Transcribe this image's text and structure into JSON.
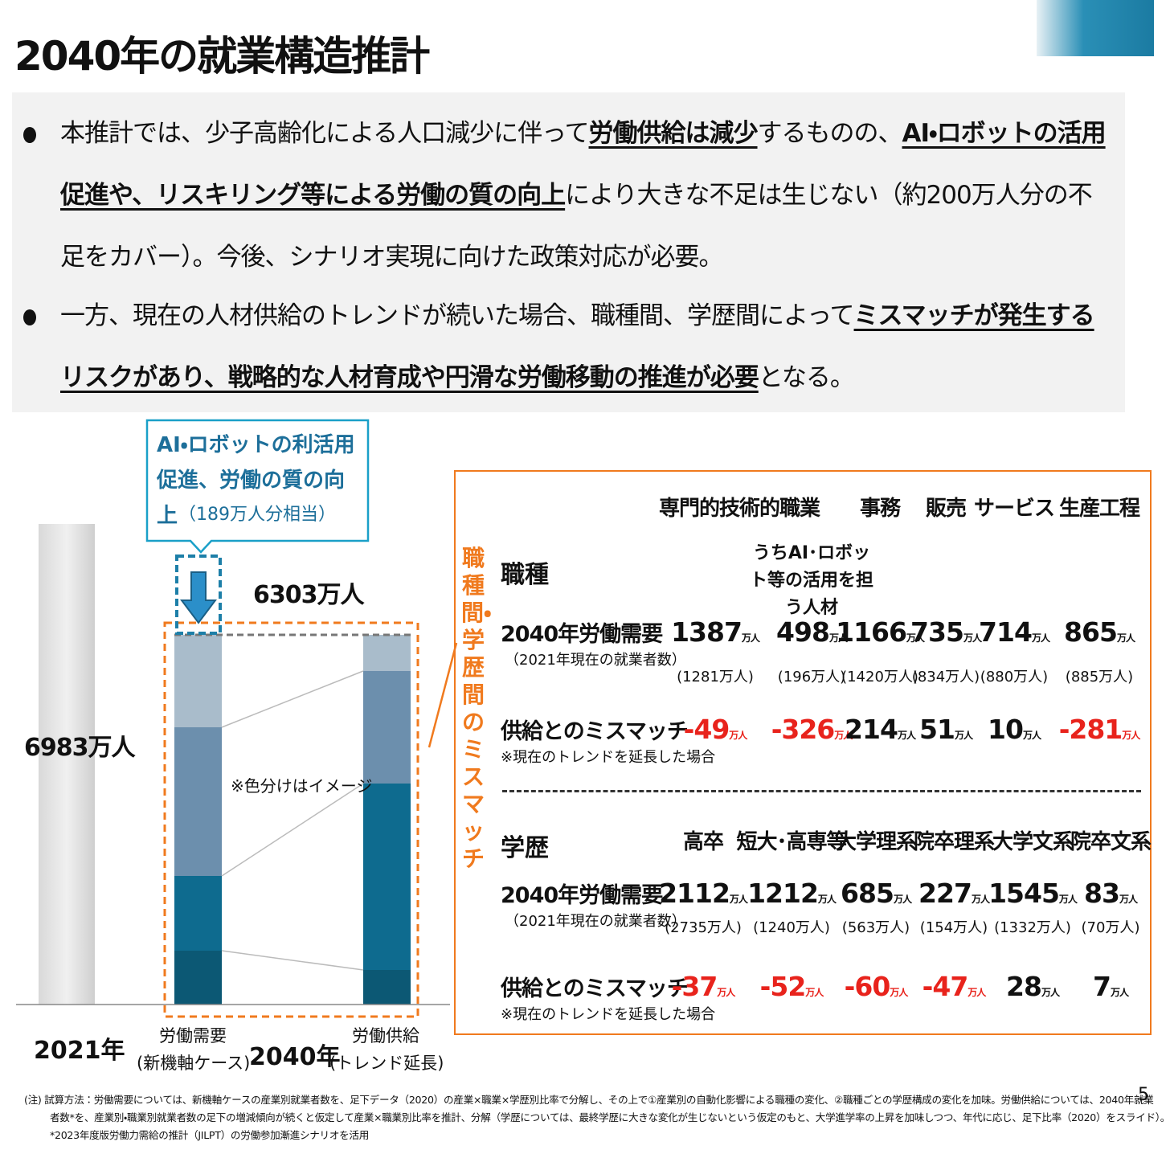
{
  "header": {
    "title": "2040年の就業構造推計"
  },
  "bullets": [
    [
      "本推計では、少子高齢化による人口減少に伴って",
      "労働供給は減少",
      "するものの、",
      "AI・ロボットの活用促進や、リスキリング等による労働の質の向上",
      "により大きな不足は生じない（約200万人分の不足をカバー）。今後、シナリオ実現に向けた政策対応が必要。"
    ],
    [
      "一方、現在の人材供給のトレンドが続いた場合、職種間、学歴間によって",
      "ミスマッチが発生するリスクがあり、戦略的な人材育成や円滑な労働移動の推進が必要",
      "となる。"
    ]
  ],
  "chart": {
    "callout": "AI・ロボットの利活用促進、労働の質の向上",
    "callout_note": "（189万人分相当）",
    "total_2040": "6303万人",
    "total_2021": "6983万人",
    "note": "※色分けはイメージ",
    "year_2021": "2021年",
    "year_2040": "2040年",
    "demand_label": [
      "労働需要",
      "(新機軸ケース)"
    ],
    "supply_label": [
      "労働供給",
      "(トレンド延長)"
    ]
  },
  "mismatch_panel": {
    "title": "職種間・学歴間のミスマッチ",
    "unit": "万人",
    "occupation": {
      "header": "職種",
      "columns": [
        "専門的技術的職業",
        "うちAI･ロボット等の活用を担う人材",
        "事務",
        "販売",
        "サービス",
        "生産工程"
      ],
      "demand_label": "2040年労働需要",
      "demand_note": "（2021年現在の就業者数）",
      "demand": [
        1387,
        498,
        1166,
        735,
        714,
        865
      ],
      "current": [
        "(1281万人)",
        "(196万人)",
        "(1420万人)",
        "(834万人)",
        "(880万人)",
        "(885万人)"
      ],
      "mismatch_label": "供給とのミスマッチ",
      "mismatch_note": "※現在のトレンドを延長した場合",
      "mismatch": [
        -49,
        -326,
        214,
        51,
        10,
        -281
      ]
    },
    "education": {
      "header": "学歴",
      "columns": [
        "高卒",
        "短大･高専等",
        "大学理系",
        "院卒理系",
        "大学文系",
        "院卒文系"
      ],
      "demand_label": "2040年労働需要",
      "demand_note": "（2021年現在の就業者数）",
      "demand": [
        2112,
        1212,
        685,
        227,
        1545,
        83
      ],
      "current": [
        "(2735万人)",
        "(1240万人)",
        "(563万人)",
        "(154万人)",
        "(1332万人)",
        "(70万人)"
      ],
      "mismatch_label": "供給とのミスマッチ",
      "mismatch_note": "※現在のトレンドを延長した場合",
      "mismatch": [
        -37,
        -52,
        -60,
        -47,
        28,
        7
      ]
    }
  },
  "footnote": [
    "(注) 試算方法：労働需要については、新機軸ケースの産業別就業者数を、足下データ（2020）の産業×職業×学歴別比率で分解し、その上で①産業別の自動化影響による職種の変化、②職種ごとの学歴構成の変化を加味。労働供給については、2040年就業",
    "者数*を、産業別・職業別就業者数の足下の増減傾向が続くと仮定して産業×職業別比率を推計、分解（学歴については、最終学歴に大きな変化が生じないという仮定のもと、大学進学率の上昇を加味しつつ、年代に応じ、足下比率（2020）をスライド）。",
    "*2023年度版労働力需給の推計（JILPT）の労働参加漸進シナリオを活用"
  ],
  "page_number": "5"
}
